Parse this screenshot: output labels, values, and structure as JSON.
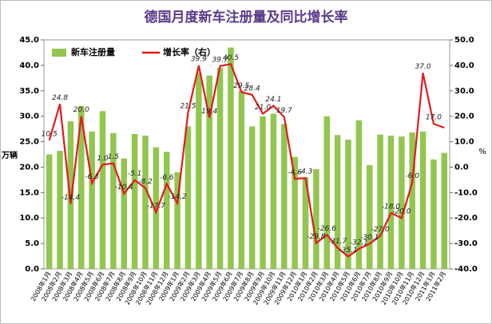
{
  "chart_data": {
    "type": "bar_line",
    "title": "德国月度新车注册量及同比增长率",
    "y_label": "万辆",
    "y2_label": "%",
    "categories": [
      "2008年1月",
      "2008年2月",
      "2008年3月",
      "2008年4月",
      "2008年5月",
      "2008年6月",
      "2008年7月",
      "2008年8月",
      "2008年9月",
      "2008年10月",
      "2008年11月",
      "2008年12月",
      "2009年1月",
      "2009年2月",
      "2009年3月",
      "2009年4月",
      "2009年5月",
      "2009年6月",
      "2009年7月",
      "2009年8月",
      "2009年9月",
      "2009年10月",
      "2009年11月",
      "2009年12月",
      "2010年1月",
      "2010年2月",
      "2010年3月",
      "2010年4月",
      "2010年5月",
      "2010年6月",
      "2010年7月",
      "2010年8月",
      "2010年9月",
      "2010年10月",
      "2010年11月",
      "2010年12月",
      "2011年1月",
      "2011年2月"
    ],
    "series": [
      {
        "name": "新车注册量",
        "type": "bar",
        "color": "#92c64e",
        "values": [
          22.5,
          23.2,
          29,
          32,
          27,
          31,
          26.7,
          21.7,
          26.5,
          26.2,
          23.9,
          23,
          19,
          28,
          38.5,
          38,
          39.5,
          43.5,
          35,
          28,
          30,
          30.5,
          28.5,
          22,
          18,
          19.6,
          30,
          26.3,
          25.4,
          29.2,
          20.4,
          26.4,
          26.2,
          26,
          26.8,
          27,
          21.5,
          22.8
        ]
      },
      {
        "name": "增长率（右）",
        "type": "line",
        "axis": "y2",
        "color": "#e31a1c",
        "values": [
          10.5,
          24.8,
          -14.4,
          20.0,
          -6.3,
          1.0,
          1.5,
          -10.4,
          -5.1,
          -8.2,
          -17.7,
          -6.6,
          -14.2,
          21.5,
          39.9,
          19.4,
          39.7,
          40.5,
          29.5,
          28.4,
          21.0,
          24.1,
          19.7,
          -4.6,
          -4.3,
          -29.8,
          -26.6,
          -31.7,
          -35.1,
          -32.1,
          -30.1,
          -27.0,
          -18.0,
          -20.0,
          -6.0,
          37.0,
          17.0,
          15.5
        ],
        "value_labels": [
          "10.5",
          "24.8",
          "-14.4",
          "20.0",
          "-6.3",
          "1.0",
          "1.5",
          "-10.4",
          "-5.1",
          "-8.2",
          "-17.7",
          "-6.6",
          "-14.2",
          "21.5",
          "39.9",
          "19.4",
          "39.7",
          "40.5",
          "29.5",
          "28.4",
          "21.0",
          "24.1",
          "19.7",
          "-4.6",
          "-4.3",
          "-29.8",
          "-26.6",
          "-31.7",
          "-35.1",
          "-32.1",
          "-30.1",
          "-27.0",
          "-18.0",
          "-20.0",
          "-6.0",
          "37.0",
          "17.0",
          null
        ]
      }
    ],
    "ylim": [
      0,
      45
    ],
    "yticks": [
      {
        "value": 0,
        "label": "0.0"
      },
      {
        "value": 5,
        "label": "5.0"
      },
      {
        "value": 10,
        "label": "10.0"
      },
      {
        "value": 15,
        "label": "15.0"
      },
      {
        "value": 20,
        "label": "20.0"
      },
      {
        "value": 25,
        "label": "25.0"
      },
      {
        "value": 30,
        "label": "30.0"
      },
      {
        "value": 35,
        "label": "35.0"
      },
      {
        "value": 40,
        "label": "40.0"
      },
      {
        "value": 45,
        "label": "45.0"
      }
    ],
    "y2lim": [
      -40,
      50
    ],
    "y2ticks": [
      {
        "value": -40,
        "label": "-40.0"
      },
      {
        "value": -30,
        "label": "-30.0"
      },
      {
        "value": -20,
        "label": "-20.0"
      },
      {
        "value": -10,
        "label": "-10.0"
      },
      {
        "value": 0,
        "label": "0.0"
      },
      {
        "value": 10,
        "label": "10.0"
      },
      {
        "value": 20,
        "label": "20.0"
      },
      {
        "value": 30,
        "label": "30.0"
      },
      {
        "value": 40,
        "label": "40.0"
      },
      {
        "value": 50,
        "label": "50.0"
      }
    ],
    "legend": "upper left"
  }
}
